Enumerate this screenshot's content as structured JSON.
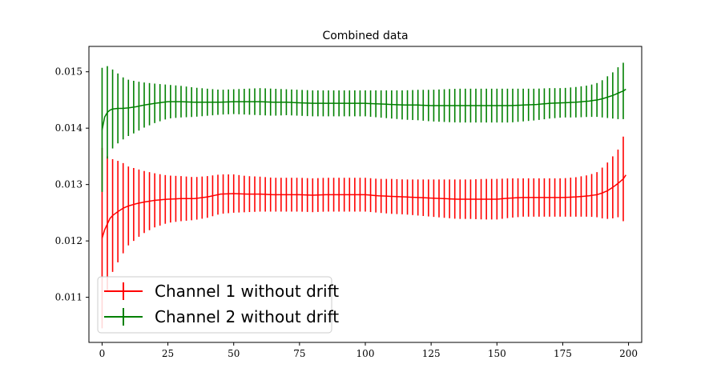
{
  "chart_data": {
    "type": "line",
    "title": "Combined data",
    "xlabel": "",
    "ylabel": "",
    "xlim": [
      -5,
      205
    ],
    "ylim": [
      0.0102,
      0.01545
    ],
    "xticks": [
      0,
      25,
      50,
      75,
      100,
      125,
      150,
      175,
      200
    ],
    "xtick_labels": [
      "0",
      "25",
      "50",
      "75",
      "100",
      "125",
      "150",
      "175",
      "200"
    ],
    "yticks": [
      0.011,
      0.012,
      0.013,
      0.014,
      0.015
    ],
    "ytick_labels": [
      "0.011",
      "0.012",
      "0.013",
      "0.014",
      "0.015"
    ],
    "grid": false,
    "legend_position": "lower-left",
    "error_bar_every": 2,
    "series": [
      {
        "name": "Channel 1 without drift",
        "color": "#ff0000",
        "x": [
          0,
          1,
          2,
          3,
          4,
          6,
          8,
          10,
          13,
          16,
          20,
          25,
          30,
          35,
          40,
          45,
          50,
          55,
          60,
          65,
          70,
          75,
          80,
          85,
          90,
          95,
          100,
          105,
          110,
          115,
          120,
          125,
          130,
          135,
          140,
          145,
          150,
          155,
          160,
          165,
          170,
          175,
          180,
          185,
          188,
          190,
          192,
          194,
          196,
          198,
          199
        ],
        "y": [
          0.01205,
          0.0122,
          0.0123,
          0.0124,
          0.01245,
          0.01252,
          0.01258,
          0.01262,
          0.01266,
          0.01269,
          0.01272,
          0.01274,
          0.01275,
          0.01275,
          0.01278,
          0.01283,
          0.01284,
          0.01283,
          0.01283,
          0.01282,
          0.01282,
          0.01282,
          0.01281,
          0.01282,
          0.01282,
          0.01282,
          0.01282,
          0.0128,
          0.01279,
          0.01278,
          0.01277,
          0.01276,
          0.01275,
          0.01274,
          0.01274,
          0.01274,
          0.01274,
          0.01276,
          0.01277,
          0.01277,
          0.01277,
          0.01277,
          0.01278,
          0.0128,
          0.01282,
          0.01285,
          0.01289,
          0.01295,
          0.01302,
          0.0131,
          0.01317
        ],
        "err": [
          0.0016,
          0.0014,
          0.0012,
          0.00108,
          0.001,
          0.0009,
          0.0008,
          0.0007,
          0.00062,
          0.00055,
          0.00048,
          0.00042,
          0.0004,
          0.00038,
          0.00037,
          0.00035,
          0.00034,
          0.00032,
          0.00031,
          0.0003,
          0.0003,
          0.0003,
          0.0003,
          0.0003,
          0.0003,
          0.0003,
          0.0003,
          0.0003,
          0.00031,
          0.00031,
          0.00032,
          0.00033,
          0.00034,
          0.00035,
          0.00035,
          0.00036,
          0.00036,
          0.00035,
          0.00034,
          0.00034,
          0.00034,
          0.00034,
          0.00035,
          0.00037,
          0.0004,
          0.00045,
          0.0005,
          0.00055,
          0.0006,
          0.00075,
          0.00085
        ]
      },
      {
        "name": "Channel 2 without drift",
        "color": "#008000",
        "x": [
          0,
          1,
          2,
          3,
          4,
          6,
          8,
          10,
          13,
          16,
          20,
          25,
          30,
          35,
          40,
          45,
          50,
          55,
          60,
          65,
          70,
          75,
          80,
          85,
          90,
          95,
          100,
          105,
          110,
          115,
          120,
          125,
          130,
          135,
          140,
          145,
          150,
          155,
          160,
          165,
          170,
          175,
          180,
          185,
          188,
          190,
          192,
          194,
          196,
          198,
          199
        ],
        "y": [
          0.01397,
          0.0142,
          0.01428,
          0.01432,
          0.01434,
          0.01435,
          0.01435,
          0.01436,
          0.01438,
          0.01441,
          0.01444,
          0.01447,
          0.01447,
          0.01446,
          0.01446,
          0.01446,
          0.01447,
          0.01447,
          0.01447,
          0.01446,
          0.01446,
          0.01445,
          0.01444,
          0.01444,
          0.01444,
          0.01444,
          0.01444,
          0.01443,
          0.01442,
          0.01441,
          0.01441,
          0.0144,
          0.0144,
          0.0144,
          0.0144,
          0.0144,
          0.0144,
          0.0144,
          0.01441,
          0.01442,
          0.01444,
          0.01445,
          0.01446,
          0.01448,
          0.0145,
          0.01452,
          0.01455,
          0.01458,
          0.01462,
          0.01466,
          0.01469
        ],
        "err": [
          0.0011,
          0.0009,
          0.00082,
          0.00075,
          0.0007,
          0.00062,
          0.00055,
          0.0005,
          0.00045,
          0.0004,
          0.00035,
          0.0003,
          0.00028,
          0.00026,
          0.00024,
          0.00022,
          0.00022,
          0.00023,
          0.00024,
          0.00024,
          0.00023,
          0.00023,
          0.00023,
          0.00023,
          0.00023,
          0.00023,
          0.00023,
          0.00024,
          0.00025,
          0.00026,
          0.00027,
          0.00028,
          0.00029,
          0.0003,
          0.0003,
          0.0003,
          0.0003,
          0.0003,
          0.00029,
          0.00028,
          0.00027,
          0.00026,
          0.00027,
          0.00028,
          0.0003,
          0.00033,
          0.00037,
          0.00041,
          0.00046,
          0.0005,
          0.00055
        ]
      }
    ]
  }
}
